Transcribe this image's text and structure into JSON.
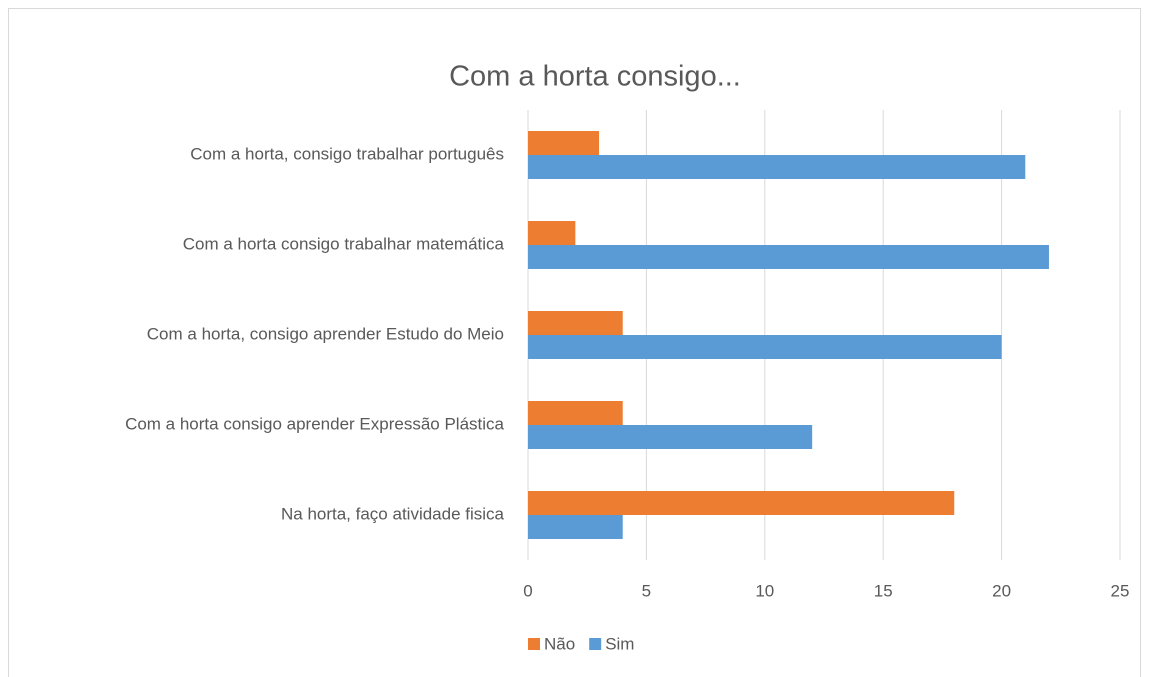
{
  "chart_data": {
    "type": "bar",
    "orientation": "horizontal",
    "title": "Com a horta consigo...",
    "categories": [
      "Com a horta, consigo trabalhar português",
      "Com a horta consigo trabalhar matemática",
      "Com a horta, consigo aprender Estudo do Meio",
      "Com a horta consigo aprender Expressão Plástica",
      "Na horta, faço atividade fisica"
    ],
    "series": [
      {
        "name": "Não",
        "color": "#ed7d31",
        "values": [
          3,
          2,
          4,
          4,
          18
        ]
      },
      {
        "name": "Sim",
        "color": "#5b9bd5",
        "values": [
          21,
          22,
          20,
          12,
          4
        ]
      }
    ],
    "xlim": [
      0,
      25
    ],
    "xticks": [
      0,
      5,
      10,
      15,
      20,
      25
    ],
    "grid": true,
    "legend": "bottom"
  }
}
